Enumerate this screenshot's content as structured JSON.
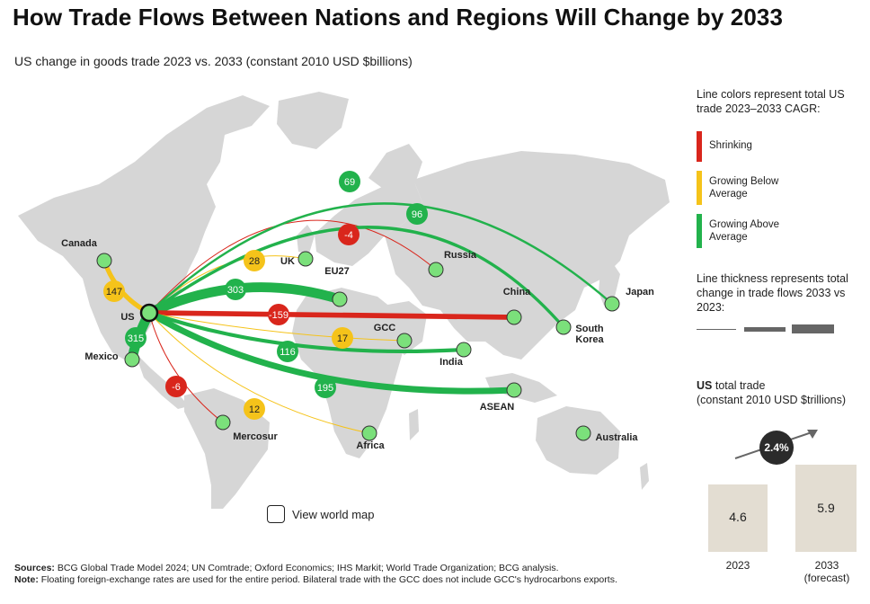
{
  "title": "How Trade Flows Between Nations and Regions Will Change by 2033",
  "subtitle": "US change in goods trade 2023 vs. 2033 (constant 2010 USD $billions)",
  "legend": {
    "color_title": "Line colors represent total US trade 2023–2033 CAGR:",
    "shrinking": "Shrinking",
    "growing_below": "Growing Below Average",
    "growing_above": "Growing Above Average",
    "thickness_title": "Line thickness represents total change in trade flows 2033 vs 2023:"
  },
  "colors": {
    "shrinking": "#d9261c",
    "growing_below": "#f5c31a",
    "growing_above": "#22b24c",
    "land": "#d6d6d6",
    "node_fill": "#7be07b"
  },
  "us_total": {
    "title_bold": "US",
    "title_rest": " total trade",
    "subtitle": "(constant 2010 USD $trillions)",
    "cagr": "2.4%",
    "bars": [
      {
        "year": "2023",
        "value": 4.6,
        "label": "4.6"
      },
      {
        "year": "2033",
        "value": 5.9,
        "label": "5.9",
        "note": "(forecast)"
      }
    ]
  },
  "view_map_label": "View world map",
  "sources_label": "Sources:",
  "sources_text": " BCG Global Trade Model 2024; UN Comtrade; Oxford Economics; IHS Markit; World Trade Organization; BCG analysis.",
  "note_label": "Note:",
  "note_text": " Floating foreign-exchange rates are used for the entire period. Bilateral trade with the GCC does not include GCC's hydrocarbons exports.",
  "chart_data": {
    "type": "flow-map",
    "origin": "US",
    "unit": "constant 2010 USD $billions",
    "flows": [
      {
        "partner": "Canada",
        "change": 147,
        "category": "growing_below"
      },
      {
        "partner": "Mexico",
        "change": 315,
        "category": "growing_above"
      },
      {
        "partner": "UK",
        "change": 28,
        "category": "growing_below"
      },
      {
        "partner": "EU27",
        "change": 303,
        "category": "growing_above"
      },
      {
        "partner": "Russia",
        "change": -4,
        "category": "shrinking"
      },
      {
        "partner": "Japan",
        "change": 69,
        "category": "growing_above"
      },
      {
        "partner": "South Korea",
        "change": 96,
        "category": "growing_above"
      },
      {
        "partner": "China",
        "change": -159,
        "category": "shrinking"
      },
      {
        "partner": "GCC",
        "change": 17,
        "category": "growing_below"
      },
      {
        "partner": "India",
        "change": 116,
        "category": "growing_above"
      },
      {
        "partner": "ASEAN",
        "change": 195,
        "category": "growing_above"
      },
      {
        "partner": "Mercosur",
        "change": -6,
        "category": "shrinking"
      },
      {
        "partner": "Africa",
        "change": 12,
        "category": "growing_below"
      },
      {
        "partner": "Australia",
        "change": null,
        "category": null
      }
    ]
  }
}
